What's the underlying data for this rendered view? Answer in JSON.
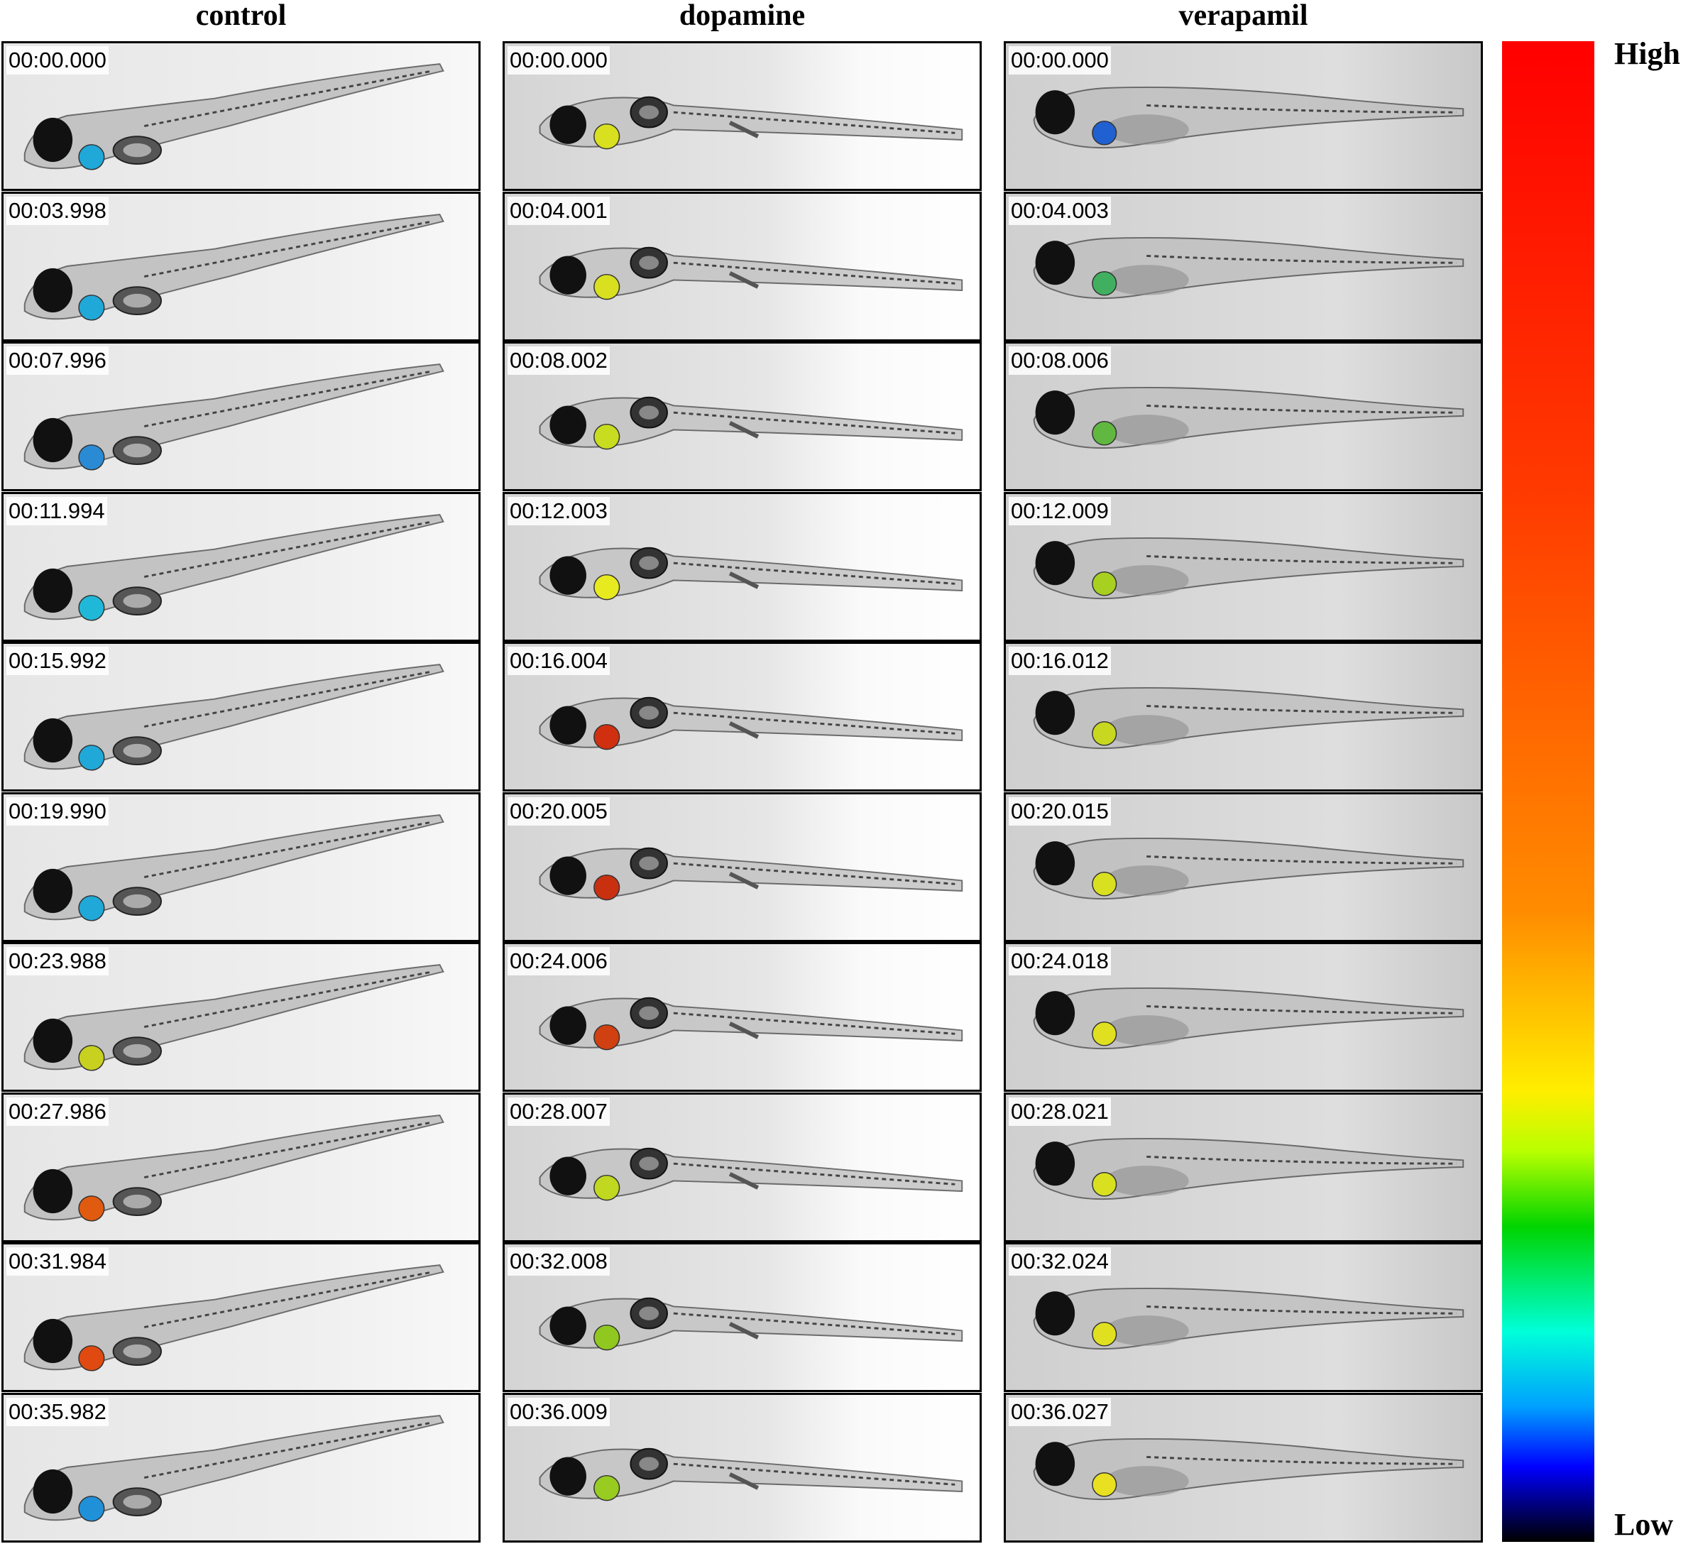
{
  "columns": [
    {
      "title": "control",
      "timestamps": [
        "00:00.000",
        "00:03.998",
        "00:07.996",
        "00:11.994",
        "00:15.992",
        "00:19.990",
        "00:23.988",
        "00:27.986",
        "00:31.984",
        "00:35.982"
      ],
      "heart_colors": [
        "#1fa8d8",
        "#1fa8d8",
        "#2a8ad4",
        "#20b8d8",
        "#20a8d8",
        "#20a8d8",
        "#c8d020",
        "#e05a10",
        "#e04a10",
        "#2090d8"
      ]
    },
    {
      "title": "dopamine",
      "timestamps": [
        "00:00.000",
        "00:04.001",
        "00:08.002",
        "00:12.003",
        "00:16.004",
        "00:20.005",
        "00:24.006",
        "00:28.007",
        "00:32.008",
        "00:36.009"
      ],
      "heart_colors": [
        "#d8e020",
        "#d8e020",
        "#c8dc20",
        "#e8ea20",
        "#d03010",
        "#c83010",
        "#d04010",
        "#c0d820",
        "#90c820",
        "#98cc20"
      ]
    },
    {
      "title": "verapamil",
      "timestamps": [
        "00:00.000",
        "00:04.003",
        "00:08.006",
        "00:12.009",
        "00:16.012",
        "00:20.015",
        "00:24.018",
        "00:28.021",
        "00:32.024",
        "00:36.027"
      ],
      "heart_colors": [
        "#2060d0",
        "#40b060",
        "#60b840",
        "#a8d020",
        "#c8d820",
        "#d8e020",
        "#e0e020",
        "#d8e020",
        "#e0e020",
        "#e8e020"
      ]
    }
  ],
  "colorbar": {
    "high_label": "High",
    "low_label": "Low"
  }
}
